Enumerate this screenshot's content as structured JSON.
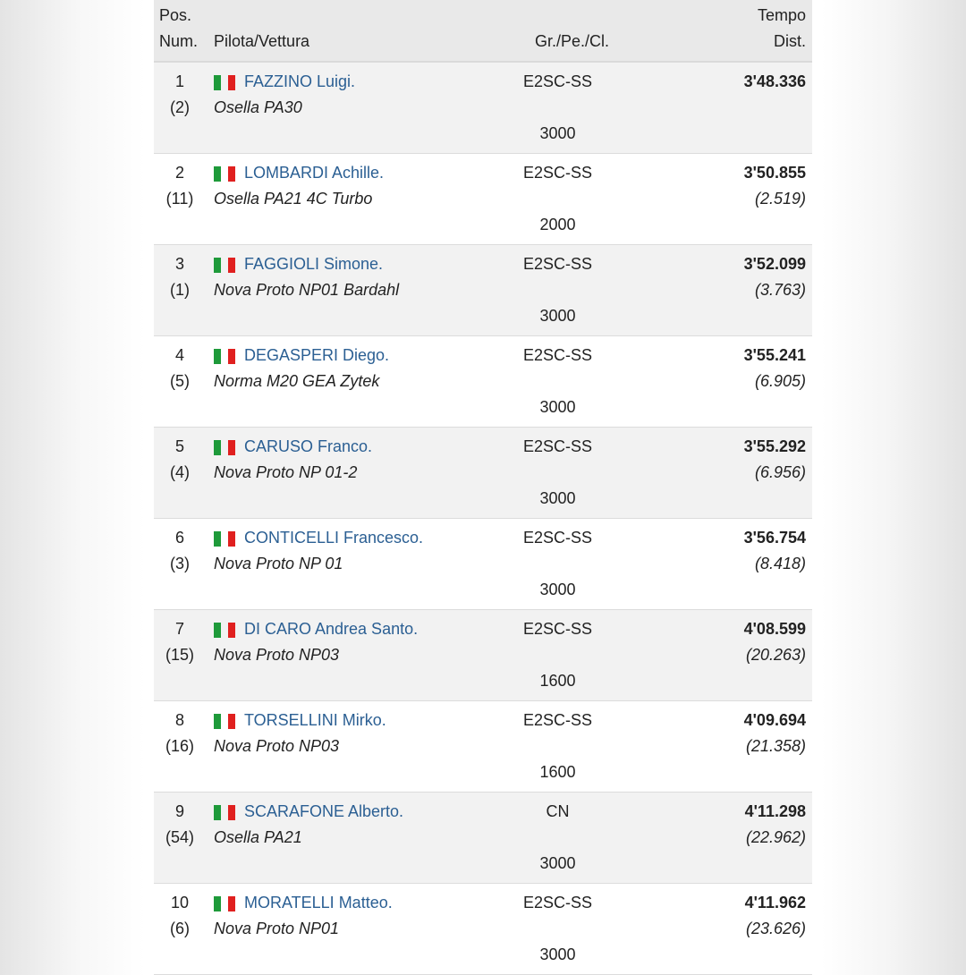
{
  "header": {
    "pos": "Pos.",
    "num": "Num.",
    "driver": "Pilota/Vettura",
    "group": "Gr./Pe./Cl.",
    "time": "Tempo",
    "gap": "Dist."
  },
  "colors": {
    "name_link": "#2b5f93",
    "flag_green": "#1e9a3a",
    "flag_red": "#e0201f"
  },
  "rows": [
    {
      "pos": "1",
      "num": "(2)",
      "flag": "italy-flag-icon",
      "name": "FAZZINO Luigi.",
      "car": "Osella PA30",
      "group": "E2SC-SS",
      "cc": "3000",
      "time": "3'48.336",
      "gap": ""
    },
    {
      "pos": "2",
      "num": "(11)",
      "flag": "italy-flag-icon",
      "name": "LOMBARDI Achille.",
      "car": "Osella PA21 4C Turbo",
      "group": "E2SC-SS",
      "cc": "2000",
      "time": "3'50.855",
      "gap": "(2.519)"
    },
    {
      "pos": "3",
      "num": "(1)",
      "flag": "italy-flag-icon",
      "name": "FAGGIOLI Simone.",
      "car": "Nova Proto NP01 Bardahl",
      "group": "E2SC-SS",
      "cc": "3000",
      "time": "3'52.099",
      "gap": "(3.763)"
    },
    {
      "pos": "4",
      "num": "(5)",
      "flag": "italy-flag-icon",
      "name": "DEGASPERI Diego.",
      "car": "Norma M20 GEA Zytek",
      "group": "E2SC-SS",
      "cc": "3000",
      "time": "3'55.241",
      "gap": "(6.905)"
    },
    {
      "pos": "5",
      "num": "(4)",
      "flag": "italy-flag-icon",
      "name": "CARUSO Franco.",
      "car": "Nova Proto NP 01-2",
      "group": "E2SC-SS",
      "cc": "3000",
      "time": "3'55.292",
      "gap": "(6.956)"
    },
    {
      "pos": "6",
      "num": "(3)",
      "flag": "italy-flag-icon",
      "name": "CONTICELLI Francesco.",
      "car": "Nova Proto NP 01",
      "group": "E2SC-SS",
      "cc": "3000",
      "time": "3'56.754",
      "gap": "(8.418)"
    },
    {
      "pos": "7",
      "num": "(15)",
      "flag": "italy-flag-icon",
      "name": "DI CARO Andrea Santo.",
      "car": "Nova Proto NP03",
      "group": "E2SC-SS",
      "cc": "1600",
      "time": "4'08.599",
      "gap": "(20.263)"
    },
    {
      "pos": "8",
      "num": "(16)",
      "flag": "italy-flag-icon",
      "name": "TORSELLINI Mirko.",
      "car": "Nova Proto NP03",
      "group": "E2SC-SS",
      "cc": "1600",
      "time": "4'09.694",
      "gap": "(21.358)"
    },
    {
      "pos": "9",
      "num": "(54)",
      "flag": "italy-flag-icon",
      "name": "SCARAFONE Alberto.",
      "car": "Osella PA21",
      "group": "CN",
      "cc": "3000",
      "time": "4'11.298",
      "gap": "(22.962)"
    },
    {
      "pos": "10",
      "num": "(6)",
      "flag": "italy-flag-icon",
      "name": "MORATELLI Matteo.",
      "car": "Nova Proto NP01",
      "group": "E2SC-SS",
      "cc": "3000",
      "time": "4'11.962",
      "gap": "(23.626)"
    }
  ]
}
